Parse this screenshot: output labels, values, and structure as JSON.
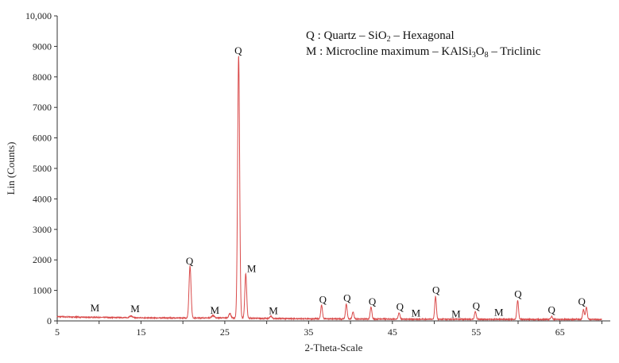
{
  "chart_data": {
    "type": "line",
    "xlabel": "2-Theta-Scale",
    "ylabel": "Lin (Counts)",
    "xlim": [
      5,
      71
    ],
    "ylim": [
      0,
      10000
    ],
    "xticks": [
      5,
      15,
      25,
      35,
      45,
      55,
      65
    ],
    "yticks": [
      0,
      1000,
      2000,
      3000,
      4000,
      5000,
      6000,
      7000,
      8000,
      9000,
      10000
    ],
    "ytick_labels": [
      "0",
      "1000",
      "2000",
      "3000",
      "4000",
      "5000",
      "6000",
      "7000",
      "8000",
      "9000",
      "10,000"
    ],
    "grid": false,
    "line_color": "#d94a4a",
    "legend": {
      "placement": "top-right",
      "entries": [
        {
          "symbol": "Q",
          "parts": [
            {
              "t": "Q : Quartz – SiO"
            },
            {
              "t": "2",
              "sub": true
            },
            {
              "t": " – Hexagonal"
            }
          ]
        },
        {
          "symbol": "M",
          "parts": [
            {
              "t": "M : Microcline maximum – KAlSi"
            },
            {
              "t": "3",
              "sub": true
            },
            {
              "t": "O"
            },
            {
              "t": "8",
              "sub": true
            },
            {
              "t": " – Triclinic"
            }
          ]
        }
      ]
    },
    "baseline": [
      [
        5,
        140
      ],
      [
        8,
        120
      ],
      [
        12,
        110
      ],
      [
        16,
        100
      ],
      [
        20,
        95
      ],
      [
        25,
        100
      ],
      [
        30,
        80
      ],
      [
        35,
        70
      ],
      [
        40,
        65
      ],
      [
        45,
        60
      ],
      [
        50,
        55
      ],
      [
        55,
        55
      ],
      [
        60,
        50
      ],
      [
        65,
        50
      ],
      [
        70,
        50
      ]
    ],
    "peaks": [
      {
        "x": 20.85,
        "y": 1700,
        "w": 0.12
      },
      {
        "x": 26.65,
        "y": 8600,
        "w": 0.12
      },
      {
        "x": 27.5,
        "y": 1450,
        "w": 0.11
      },
      {
        "x": 36.55,
        "y": 450,
        "w": 0.1
      },
      {
        "x": 39.5,
        "y": 480,
        "w": 0.1
      },
      {
        "x": 40.3,
        "y": 230,
        "w": 0.1
      },
      {
        "x": 42.45,
        "y": 390,
        "w": 0.1
      },
      {
        "x": 45.8,
        "y": 210,
        "w": 0.1
      },
      {
        "x": 50.15,
        "y": 740,
        "w": 0.1
      },
      {
        "x": 54.9,
        "y": 250,
        "w": 0.1
      },
      {
        "x": 59.95,
        "y": 620,
        "w": 0.1
      },
      {
        "x": 64.0,
        "y": 100,
        "w": 0.1
      },
      {
        "x": 67.8,
        "y": 320,
        "w": 0.1
      },
      {
        "x": 68.15,
        "y": 400,
        "w": 0.1
      },
      {
        "x": 13.8,
        "y": 60,
        "w": 0.15
      },
      {
        "x": 23.6,
        "y": 80,
        "w": 0.15
      },
      {
        "x": 25.6,
        "y": 150,
        "w": 0.12
      },
      {
        "x": 30.5,
        "y": 80,
        "w": 0.12
      }
    ],
    "peak_labels": [
      {
        "text": "M",
        "x": 9.5,
        "y": 260
      },
      {
        "text": "M",
        "x": 14.3,
        "y": 230
      },
      {
        "text": "Q",
        "x": 20.8,
        "y": 1800
      },
      {
        "text": "M",
        "x": 23.8,
        "y": 180
      },
      {
        "text": "Q",
        "x": 26.6,
        "y": 8700
      },
      {
        "text": "M",
        "x": 28.2,
        "y": 1550
      },
      {
        "text": "M",
        "x": 30.8,
        "y": 170
      },
      {
        "text": "Q",
        "x": 36.7,
        "y": 540
      },
      {
        "text": "Q",
        "x": 39.6,
        "y": 580
      },
      {
        "text": "Q",
        "x": 42.6,
        "y": 470
      },
      {
        "text": "Q",
        "x": 45.9,
        "y": 300
      },
      {
        "text": "M",
        "x": 47.8,
        "y": 90
      },
      {
        "text": "Q",
        "x": 50.2,
        "y": 850
      },
      {
        "text": "M",
        "x": 52.6,
        "y": 70
      },
      {
        "text": "Q",
        "x": 55.0,
        "y": 330
      },
      {
        "text": "M",
        "x": 57.7,
        "y": 120
      },
      {
        "text": "Q",
        "x": 60.0,
        "y": 720
      },
      {
        "text": "Q",
        "x": 64.0,
        "y": 190
      },
      {
        "text": "Q",
        "x": 67.6,
        "y": 470
      }
    ]
  }
}
